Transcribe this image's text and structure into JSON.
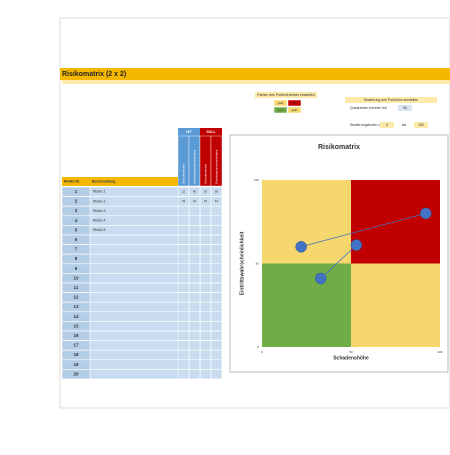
{
  "sheet": {
    "title": "Risikomatrix (2 x 2)"
  },
  "colors_panel": {
    "title": "Farben des Portfolienetzes einstellen",
    "cells": [
      {
        "label": "gelb",
        "color": "#f5d76e"
      },
      {
        "label": "rot",
        "color": "#c00000"
      },
      {
        "label": "grün",
        "color": "#70ad47"
      },
      {
        "label": "gelb",
        "color": "#f5d76e"
      }
    ]
  },
  "scale_panel": {
    "title": "Skalierung des Portfolios einstellen",
    "split_label": "Quadranten trennen bei",
    "split": 50,
    "range_label": "Skalierungsbreite von",
    "from": 0,
    "to_label": "bis",
    "to": 100
  },
  "table": {
    "headers": [
      "Risiko Nr.",
      "Beschreibung"
    ],
    "ist": "IST",
    "soll": "SOLL",
    "sub_headers": [
      "Schadenshöhe",
      "Eintrittswahrscheinlichkeit",
      "Schadenshöhe",
      "Eintrittswahrscheinlichkeit"
    ],
    "rows": [
      {
        "nr": 1,
        "desc": "Risiko 1",
        "ist": [
          22,
          60
        ],
        "soll": [
          92,
          80
        ]
      },
      {
        "nr": 2,
        "desc": "Risiko 2",
        "ist": [
          33,
          41
        ],
        "soll": [
          53,
          61
        ]
      },
      {
        "nr": 3,
        "desc": "Risiko 3"
      },
      {
        "nr": 4,
        "desc": "Risiko 4"
      },
      {
        "nr": 5,
        "desc": "Risiko 5"
      },
      {
        "nr": 6
      },
      {
        "nr": 7
      },
      {
        "nr": 8
      },
      {
        "nr": 9
      },
      {
        "nr": 10
      },
      {
        "nr": 11
      },
      {
        "nr": 12
      },
      {
        "nr": 13
      },
      {
        "nr": 14
      },
      {
        "nr": 15
      },
      {
        "nr": 16
      },
      {
        "nr": 17
      },
      {
        "nr": 18
      },
      {
        "nr": 19
      },
      {
        "nr": 20
      }
    ]
  },
  "chart": {
    "title": "Risikomatrix",
    "x_label": "Schadenshöhe",
    "y_label": "Eintrittswahrscheinlichkeit",
    "point_color": "#4472c4"
  }
}
